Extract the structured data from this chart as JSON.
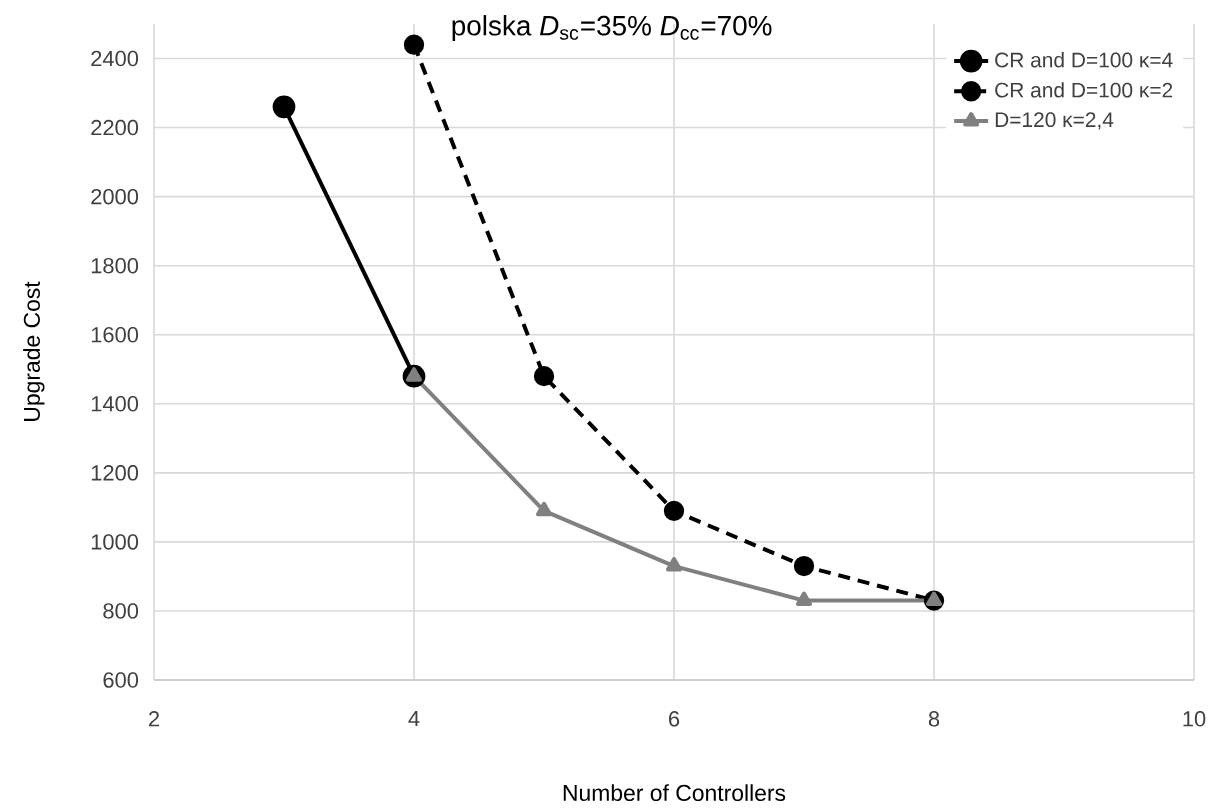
{
  "chart_data": {
    "type": "line",
    "title": "polska *D*$_{sc}$=35% *D*$_{cc}$=70%",
    "xlabel": "Number of Controllers",
    "ylabel": "Upgrade Cost",
    "xlim": [
      2,
      10
    ],
    "xticks": [
      2,
      4,
      6,
      8,
      10
    ],
    "ylim": [
      600,
      2500
    ],
    "yticks": [
      600,
      800,
      1000,
      1200,
      1400,
      1600,
      1800,
      2000,
      2200,
      2400
    ],
    "grid": true,
    "legend": "top right",
    "series": [
      {
        "name": "CR and D=100 κ=4",
        "color": "#000000",
        "marker": "circle",
        "line_style": "solid",
        "x": [
          3,
          4
        ],
        "values": [
          2260,
          1480
        ]
      },
      {
        "name": "CR and D=100 κ=2",
        "color": "#000000",
        "marker": "circle",
        "line_style": "dashed",
        "x": [
          4,
          5,
          6,
          7,
          8
        ],
        "values": [
          2440,
          1480,
          1090,
          930,
          830
        ]
      },
      {
        "name": "D=120 κ=2,4",
        "color": "#808080",
        "marker": "triangle",
        "line_style": "solid",
        "x": [
          4,
          5,
          6,
          7,
          8
        ],
        "values": [
          1480,
          1090,
          930,
          830,
          830
        ]
      }
    ]
  }
}
